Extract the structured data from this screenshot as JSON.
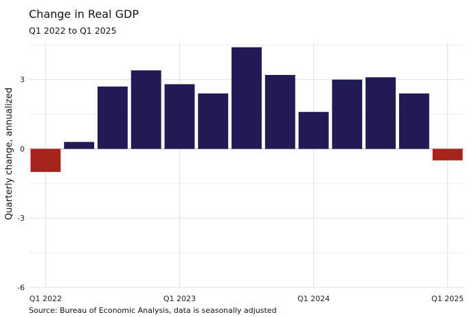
{
  "chart_data": {
    "type": "bar",
    "title": "Change in Real GDP",
    "subtitle": "Q1 2022 to Q1 2025",
    "caption": "Source: Bureau of Economic Analysis, data is seasonally adjusted",
    "ylabel": "Quarterly change, annualized",
    "xlabel": "",
    "categories": [
      "Q1 2022",
      "Q2 2022",
      "Q3 2022",
      "Q4 2022",
      "Q1 2023",
      "Q2 2023",
      "Q3 2023",
      "Q4 2023",
      "Q1 2024",
      "Q2 2024",
      "Q3 2024",
      "Q4 2024",
      "Q1 2025"
    ],
    "values": [
      -1.0,
      0.3,
      2.7,
      3.4,
      2.8,
      2.4,
      4.4,
      3.2,
      1.6,
      3.0,
      3.1,
      2.4,
      -0.5
    ],
    "x_tick_labels": [
      "Q1 2022",
      "Q1 2023",
      "Q1 2024",
      "Q1 2025"
    ],
    "y_ticks": [
      -6,
      -3,
      0,
      3
    ],
    "ylim": [
      -6,
      4.6
    ],
    "grid": true,
    "legend": "none",
    "colors": {
      "positive": "#211a54",
      "negative": "#a5241b"
    }
  }
}
